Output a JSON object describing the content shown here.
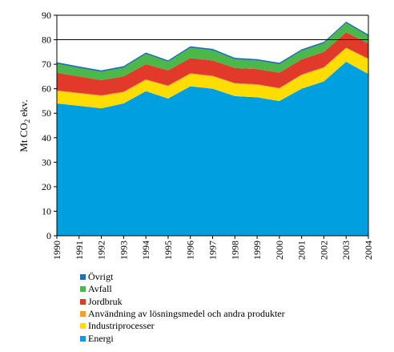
{
  "chart_data": {
    "type": "area",
    "stacked": true,
    "title": "",
    "xlabel": "",
    "ylabel": "Mt CO2 ekv.",
    "ylabel_parts": {
      "main": "Mt CO",
      "sub": "2",
      "rest": " ekv."
    },
    "ylim": [
      0,
      90
    ],
    "yticks": [
      0,
      10,
      20,
      30,
      40,
      50,
      60,
      70,
      80,
      90
    ],
    "gridlines": [
      80,
      90
    ],
    "x": [
      1990,
      1991,
      1992,
      1993,
      1994,
      1995,
      1996,
      1997,
      1998,
      1999,
      2000,
      2001,
      2002,
      2003,
      2004
    ],
    "legend_position": "bottom-left",
    "series": [
      {
        "name": "Energi",
        "color": "#00a0e0",
        "values": [
          54,
          53,
          52,
          54,
          59,
          56,
          61,
          60,
          57,
          56.5,
          55,
          60,
          63,
          71,
          66
        ]
      },
      {
        "name": "Industriprocesser",
        "color": "#ffdd00",
        "values": [
          5,
          5,
          5,
          4.5,
          4.5,
          5,
          5,
          5,
          5,
          5,
          5,
          5.5,
          5.5,
          5.5,
          6
        ]
      },
      {
        "name": "Användning av lösningsmedel och andra produkter",
        "color": "#f7a030",
        "values": [
          0.3,
          0.3,
          0.3,
          0.3,
          0.3,
          0.3,
          0.3,
          0.3,
          0.3,
          0.3,
          0.3,
          0.3,
          0.3,
          0.3,
          0.3
        ]
      },
      {
        "name": "Jordbruk",
        "color": "#e23a2a",
        "values": [
          7.2,
          6.7,
          6.2,
          6.2,
          6.2,
          6.2,
          6.2,
          6.2,
          6.2,
          6.2,
          6.2,
          6.2,
          6.2,
          6.2,
          6.2
        ]
      },
      {
        "name": "Avfall",
        "color": "#4cb84a",
        "values": [
          3.7,
          3.5,
          3.4,
          3.6,
          4.2,
          3.5,
          4.2,
          4.2,
          3.5,
          3.5,
          3.5,
          3.5,
          3.5,
          3.8,
          3
        ]
      },
      {
        "name": "Övrigt",
        "color": "#1f6db5",
        "values": [
          0.6,
          0.6,
          0.6,
          0.6,
          0.6,
          0.6,
          0.6,
          0.6,
          0.6,
          0.6,
          0.6,
          0.6,
          0.6,
          0.6,
          0.6
        ]
      }
    ]
  }
}
